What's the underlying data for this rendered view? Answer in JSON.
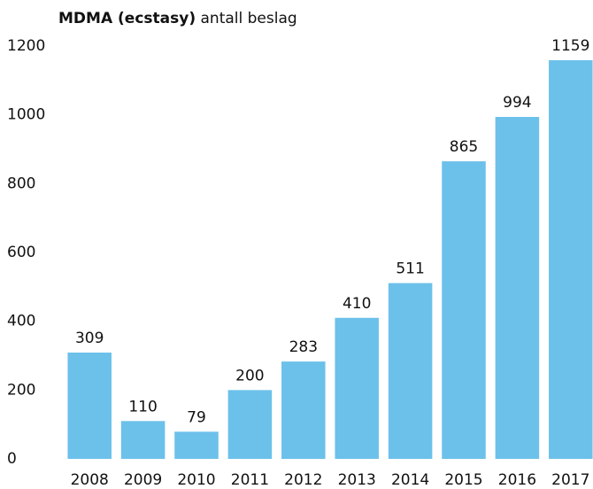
{
  "chart_data": {
    "type": "bar",
    "title_parts": [
      "MDMA (ecstasy)",
      "antall beslag"
    ],
    "categories": [
      "2008",
      "2009",
      "2010",
      "2011",
      "2012",
      "2013",
      "2014",
      "2015",
      "2016",
      "2017"
    ],
    "values": [
      309,
      110,
      79,
      200,
      283,
      410,
      511,
      865,
      994,
      1159
    ],
    "color": "#6cc1ea",
    "ylim": [
      0,
      1200
    ],
    "yticks": [
      0,
      200,
      400,
      600,
      800,
      1000,
      1200
    ],
    "grid": false
  }
}
